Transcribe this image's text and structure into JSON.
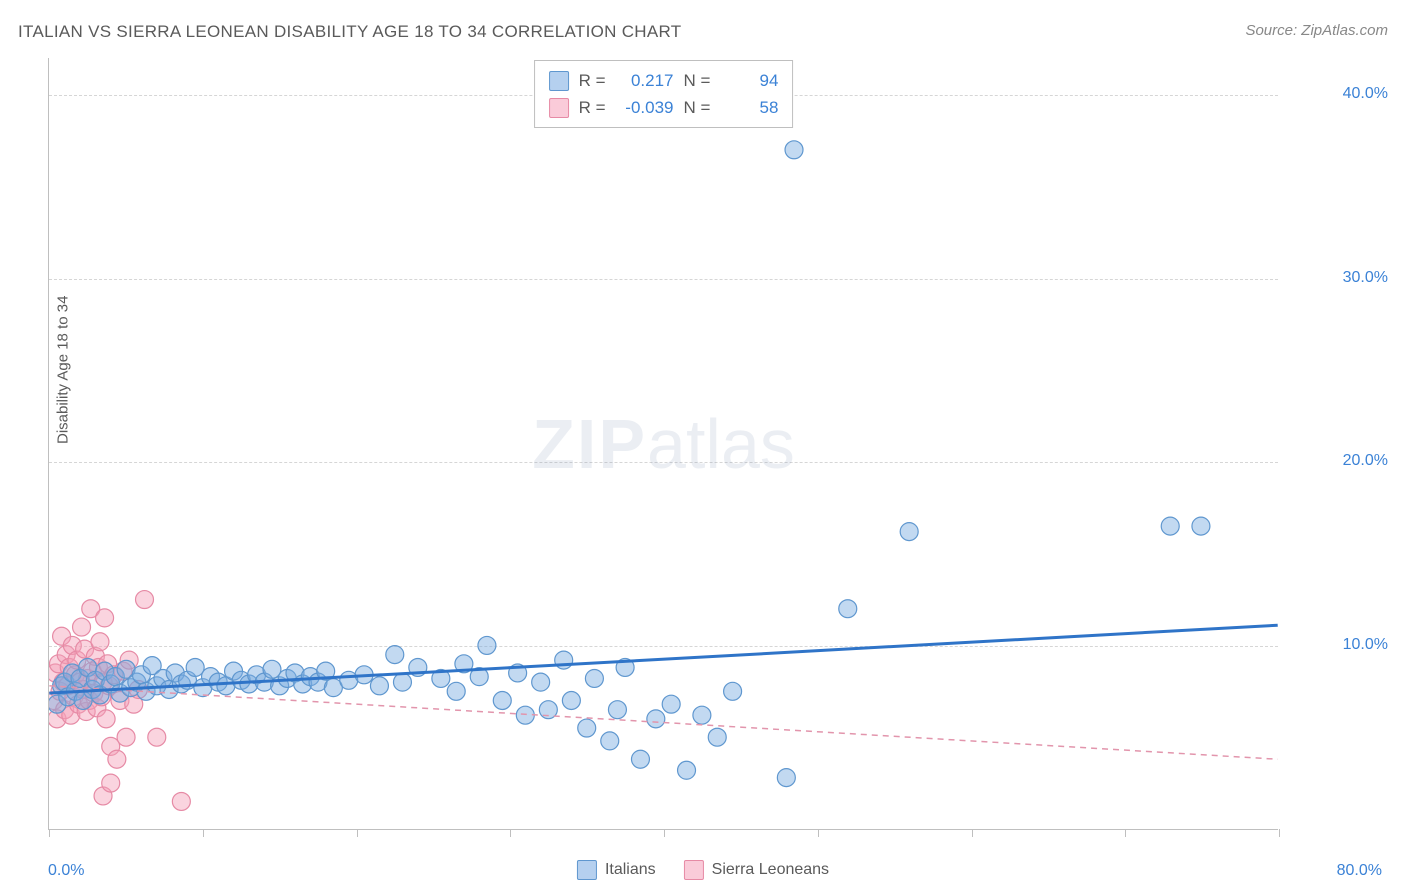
{
  "title": "ITALIAN VS SIERRA LEONEAN DISABILITY AGE 18 TO 34 CORRELATION CHART",
  "source": "Source: ZipAtlas.com",
  "y_axis_label": "Disability Age 18 to 34",
  "watermark_bold": "ZIP",
  "watermark_rest": "atlas",
  "chart": {
    "type": "scatter",
    "xlim": [
      0,
      80
    ],
    "ylim": [
      0,
      42
    ],
    "x_tick_step": 10,
    "y_ticks": [
      10,
      20,
      30,
      40
    ],
    "y_tick_labels": [
      "10.0%",
      "20.0%",
      "30.0%",
      "40.0%"
    ],
    "x_min_label": "0.0%",
    "x_max_label": "80.0%",
    "grid_color": "#d6d6d6",
    "axis_color": "#bfbfbf",
    "background_color": "#ffffff",
    "marker_radius": 9,
    "marker_stroke_width": 1.2,
    "series": [
      {
        "name": "Italians",
        "label": "Italians",
        "fill": "rgba(120,170,225,0.45)",
        "stroke": "#5f97cf",
        "trend": {
          "x1": 0,
          "y1": 7.4,
          "x2": 80,
          "y2": 11.1,
          "stroke": "#2f74c8",
          "width": 3,
          "dash": "none"
        },
        "stats": {
          "R": "0.217",
          "N": "94"
        },
        "swatch_fill": "rgba(120,170,225,0.55)",
        "swatch_stroke": "#5f97cf",
        "points": [
          [
            0.5,
            6.8
          ],
          [
            0.8,
            7.8
          ],
          [
            1.0,
            8.0
          ],
          [
            1.2,
            7.2
          ],
          [
            1.5,
            8.5
          ],
          [
            1.7,
            7.5
          ],
          [
            2.0,
            8.2
          ],
          [
            2.2,
            7.0
          ],
          [
            2.5,
            8.8
          ],
          [
            2.8,
            7.6
          ],
          [
            3.0,
            8.1
          ],
          [
            3.3,
            7.3
          ],
          [
            3.6,
            8.6
          ],
          [
            4.0,
            7.9
          ],
          [
            4.3,
            8.3
          ],
          [
            4.6,
            7.4
          ],
          [
            5.0,
            8.7
          ],
          [
            5.3,
            7.7
          ],
          [
            5.7,
            8.0
          ],
          [
            6.0,
            8.4
          ],
          [
            6.3,
            7.5
          ],
          [
            6.7,
            8.9
          ],
          [
            7.0,
            7.8
          ],
          [
            7.4,
            8.2
          ],
          [
            7.8,
            7.6
          ],
          [
            8.2,
            8.5
          ],
          [
            8.6,
            7.9
          ],
          [
            9.0,
            8.1
          ],
          [
            9.5,
            8.8
          ],
          [
            10.0,
            7.7
          ],
          [
            10.5,
            8.3
          ],
          [
            11.0,
            8.0
          ],
          [
            11.5,
            7.8
          ],
          [
            12.0,
            8.6
          ],
          [
            12.5,
            8.1
          ],
          [
            13.0,
            7.9
          ],
          [
            13.5,
            8.4
          ],
          [
            14.0,
            8.0
          ],
          [
            14.5,
            8.7
          ],
          [
            15.0,
            7.8
          ],
          [
            15.5,
            8.2
          ],
          [
            16.0,
            8.5
          ],
          [
            16.5,
            7.9
          ],
          [
            17.0,
            8.3
          ],
          [
            17.5,
            8.0
          ],
          [
            18.0,
            8.6
          ],
          [
            18.5,
            7.7
          ],
          [
            19.5,
            8.1
          ],
          [
            20.5,
            8.4
          ],
          [
            21.5,
            7.8
          ],
          [
            22.5,
            9.5
          ],
          [
            23.0,
            8.0
          ],
          [
            24.0,
            8.8
          ],
          [
            25.5,
            8.2
          ],
          [
            26.5,
            7.5
          ],
          [
            27.0,
            9.0
          ],
          [
            28.0,
            8.3
          ],
          [
            28.5,
            10.0
          ],
          [
            29.5,
            7.0
          ],
          [
            30.5,
            8.5
          ],
          [
            31.0,
            6.2
          ],
          [
            32.0,
            8.0
          ],
          [
            32.5,
            6.5
          ],
          [
            33.5,
            9.2
          ],
          [
            34.0,
            7.0
          ],
          [
            35.0,
            5.5
          ],
          [
            35.5,
            8.2
          ],
          [
            36.5,
            4.8
          ],
          [
            37.0,
            6.5
          ],
          [
            37.5,
            8.8
          ],
          [
            38.5,
            3.8
          ],
          [
            39.5,
            6.0
          ],
          [
            40.5,
            6.8
          ],
          [
            41.5,
            3.2
          ],
          [
            42.5,
            6.2
          ],
          [
            43.5,
            5.0
          ],
          [
            44.5,
            7.5
          ],
          [
            48.0,
            2.8
          ],
          [
            52.0,
            12.0
          ],
          [
            48.5,
            37.0
          ],
          [
            56.0,
            16.2
          ],
          [
            73.0,
            16.5
          ],
          [
            75.0,
            16.5
          ]
        ]
      },
      {
        "name": "Sierra Leoneans",
        "label": "Sierra Leoneans",
        "fill": "rgba(245,160,185,0.45)",
        "stroke": "#e68aa5",
        "trend": {
          "x1": 0,
          "y1": 7.8,
          "x2": 80,
          "y2": 3.8,
          "stroke": "#e295ac",
          "width": 1.5,
          "dash": "6 5"
        },
        "stats": {
          "R": "-0.039",
          "N": "58"
        },
        "swatch_fill": "rgba(245,160,185,0.55)",
        "swatch_stroke": "#e68aa5",
        "points": [
          [
            0.3,
            7.0
          ],
          [
            0.4,
            8.5
          ],
          [
            0.5,
            6.0
          ],
          [
            0.6,
            9.0
          ],
          [
            0.7,
            7.5
          ],
          [
            0.8,
            10.5
          ],
          [
            0.9,
            8.0
          ],
          [
            1.0,
            6.5
          ],
          [
            1.1,
            9.5
          ],
          [
            1.2,
            7.8
          ],
          [
            1.3,
            8.8
          ],
          [
            1.4,
            6.2
          ],
          [
            1.5,
            10.0
          ],
          [
            1.6,
            7.2
          ],
          [
            1.7,
            8.4
          ],
          [
            1.8,
            9.2
          ],
          [
            1.9,
            6.8
          ],
          [
            2.0,
            8.0
          ],
          [
            2.1,
            11.0
          ],
          [
            2.2,
            7.6
          ],
          [
            2.3,
            9.8
          ],
          [
            2.4,
            6.4
          ],
          [
            2.5,
            8.2
          ],
          [
            2.6,
            7.0
          ],
          [
            2.7,
            12.0
          ],
          [
            2.8,
            8.6
          ],
          [
            2.9,
            7.4
          ],
          [
            3.0,
            9.4
          ],
          [
            3.1,
            6.6
          ],
          [
            3.2,
            8.8
          ],
          [
            3.3,
            10.2
          ],
          [
            3.4,
            7.2
          ],
          [
            3.5,
            8.0
          ],
          [
            3.6,
            11.5
          ],
          [
            3.7,
            6.0
          ],
          [
            3.8,
            9.0
          ],
          [
            3.9,
            7.8
          ],
          [
            4.0,
            4.5
          ],
          [
            4.2,
            8.4
          ],
          [
            4.4,
            3.8
          ],
          [
            4.6,
            7.0
          ],
          [
            4.8,
            8.6
          ],
          [
            5.0,
            5.0
          ],
          [
            5.2,
            9.2
          ],
          [
            5.5,
            6.8
          ],
          [
            5.8,
            7.6
          ],
          [
            6.2,
            12.5
          ],
          [
            3.5,
            1.8
          ],
          [
            4.0,
            2.5
          ],
          [
            7.0,
            5.0
          ],
          [
            8.6,
            1.5
          ]
        ]
      }
    ]
  },
  "stat_box": {
    "r_label": "R =",
    "n_label": "N ="
  },
  "legend": {
    "italians": "Italians",
    "sierra": "Sierra Leoneans"
  }
}
